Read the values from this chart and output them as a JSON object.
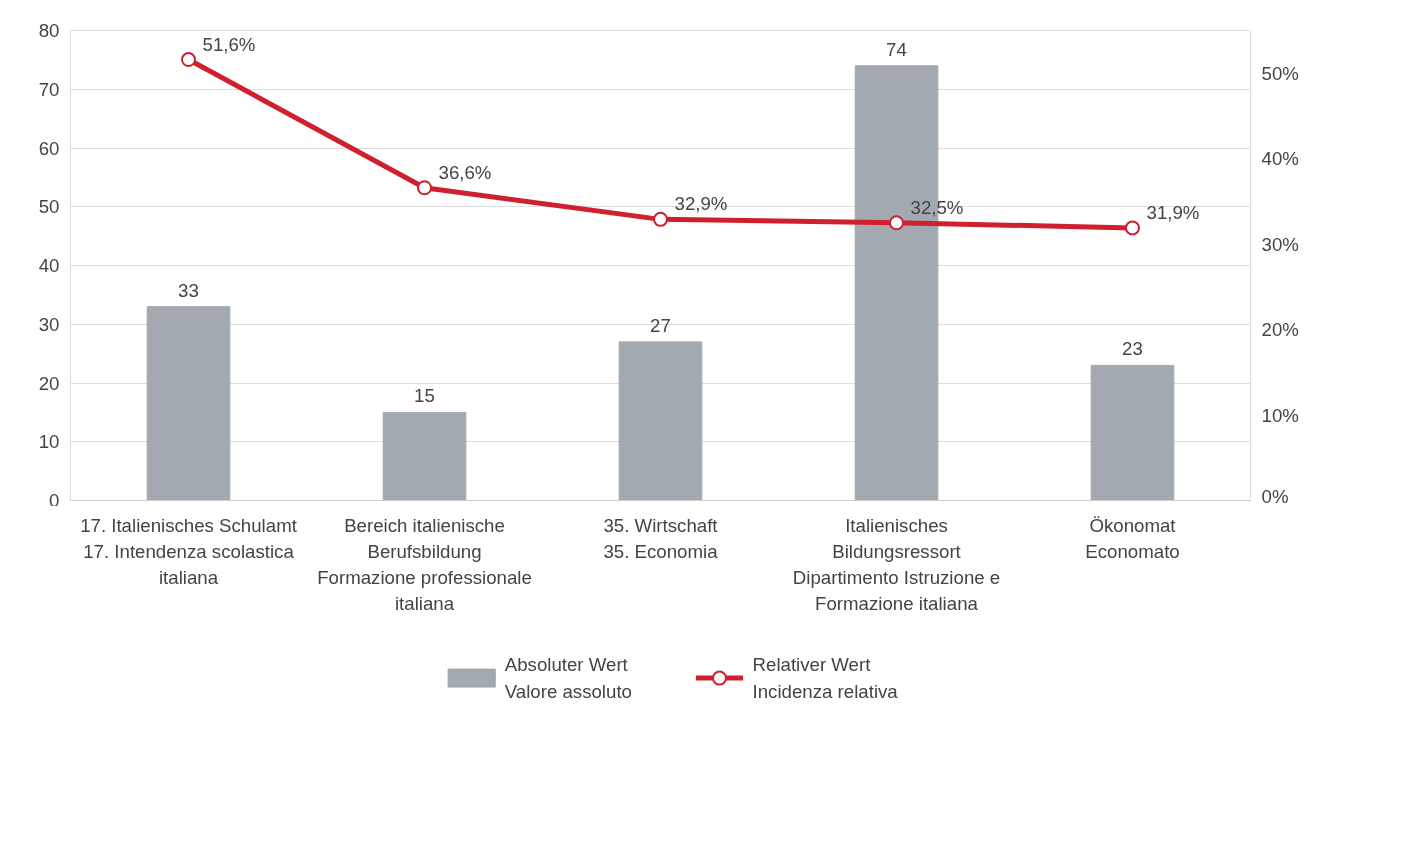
{
  "chart_data": {
    "type": "bar",
    "categories": [
      "17. Italienisches Schulamt\n17. Intendenza scolastica\nitaliana",
      "Bereich italienische\nBerufsbildung\nFormazione professionale\nitaliana",
      "35. Wirtschaft\n35. Economia",
      "Italienisches\nBildungsressort\nDipartimento Istruzione e\nFormazione italiana",
      "Ökonomat\nEconomato"
    ],
    "series": [
      {
        "name": "Absoluter Wert\nValore assoluto",
        "color": "#a2a9b1",
        "values": [
          33,
          15,
          27,
          74,
          23
        ]
      },
      {
        "name": "Relativer Wert\nIncidenza relativa",
        "type": "line",
        "axis": "y2",
        "color": "#d0202e",
        "marker": "circle",
        "values": [
          51.6,
          36.6,
          32.9,
          32.5,
          31.9
        ],
        "value_labels": [
          "51,6%",
          "36,6%",
          "32,9%",
          "32,5%",
          "31,9%"
        ]
      }
    ],
    "data_labels": true,
    "ylim": [
      0,
      80
    ],
    "yticks": [
      0,
      10,
      20,
      30,
      40,
      50,
      60,
      70,
      80
    ],
    "y2lim": [
      0,
      55
    ],
    "y2ticks": [
      {
        "value": 0,
        "label": "0%"
      },
      {
        "value": 10,
        "label": "10%"
      },
      {
        "value": 20,
        "label": "20%"
      },
      {
        "value": 30,
        "label": "30%"
      },
      {
        "value": 40,
        "label": "40%"
      },
      {
        "value": 50,
        "label": "50%"
      }
    ],
    "grid": "y",
    "legend": "bottom"
  }
}
